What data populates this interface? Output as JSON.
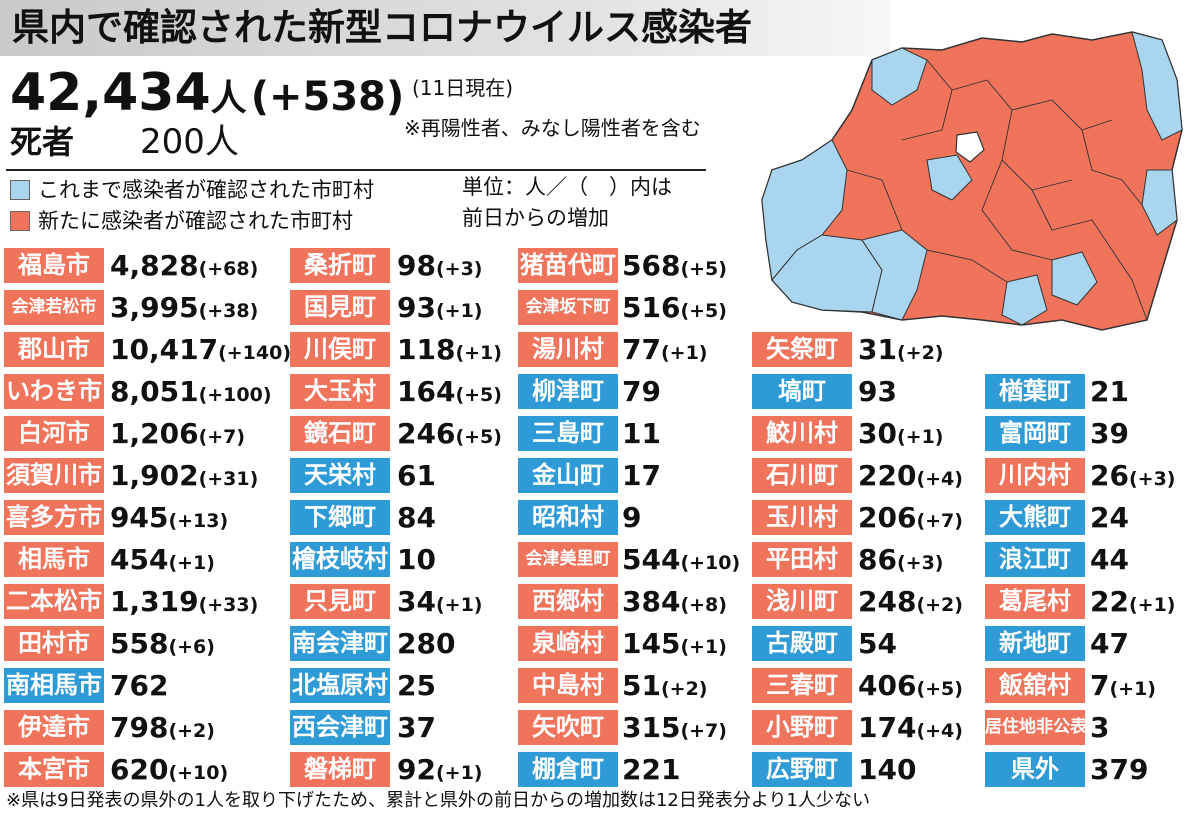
{
  "header": {
    "title": "県内で確認された新型コロナウイルス感染者",
    "total": "42,434",
    "total_unit": "人",
    "total_delta": "(+538)",
    "as_of": "(11日現在)",
    "note": "※再陽性者、みなし陽性者を含む",
    "deaths_label": "死者",
    "deaths_value": "200人"
  },
  "legend": {
    "previous": "これまで感染者が確認された市町村",
    "new": "新たに感染者が確認された市町村",
    "unit_line1": "単位：人／（　）内は",
    "unit_line2": "前日からの増加"
  },
  "colors": {
    "new_case": "#f0745c",
    "previous_case": "#2e9ad6",
    "map_previous": "#a9d6ee",
    "map_none": "#ffffff"
  },
  "columns": [
    [
      {
        "name": "福島市",
        "count": "4,828",
        "delta": "(+68)",
        "status": "new"
      },
      {
        "name": "会津若松市",
        "count": "3,995",
        "delta": "(+38)",
        "status": "new"
      },
      {
        "name": "郡山市",
        "count": "10,417",
        "delta": "(+140)",
        "status": "new"
      },
      {
        "name": "いわき市",
        "count": "8,051",
        "delta": "(+100)",
        "status": "new"
      },
      {
        "name": "白河市",
        "count": "1,206",
        "delta": "(+7)",
        "status": "new"
      },
      {
        "name": "須賀川市",
        "count": "1,902",
        "delta": "(+31)",
        "status": "new"
      },
      {
        "name": "喜多方市",
        "count": "945",
        "delta": "(+13)",
        "status": "new"
      },
      {
        "name": "相馬市",
        "count": "454",
        "delta": "(+1)",
        "status": "new"
      },
      {
        "name": "二本松市",
        "count": "1,319",
        "delta": "(+33)",
        "status": "new"
      },
      {
        "name": "田村市",
        "count": "558",
        "delta": "(+6)",
        "status": "new"
      },
      {
        "name": "南相馬市",
        "count": "762",
        "delta": "",
        "status": "old"
      },
      {
        "name": "伊達市",
        "count": "798",
        "delta": "(+2)",
        "status": "new"
      },
      {
        "name": "本宮市",
        "count": "620",
        "delta": "(+10)",
        "status": "new"
      }
    ],
    [
      {
        "name": "桑折町",
        "count": "98",
        "delta": "(+3)",
        "status": "new"
      },
      {
        "name": "国見町",
        "count": "93",
        "delta": "(+1)",
        "status": "new"
      },
      {
        "name": "川俣町",
        "count": "118",
        "delta": "(+1)",
        "status": "new"
      },
      {
        "name": "大玉村",
        "count": "164",
        "delta": "(+5)",
        "status": "new"
      },
      {
        "name": "鏡石町",
        "count": "246",
        "delta": "(+5)",
        "status": "new"
      },
      {
        "name": "天栄村",
        "count": "61",
        "delta": "",
        "status": "old"
      },
      {
        "name": "下郷町",
        "count": "84",
        "delta": "",
        "status": "old"
      },
      {
        "name": "檜枝岐村",
        "count": "10",
        "delta": "",
        "status": "old"
      },
      {
        "name": "只見町",
        "count": "34",
        "delta": "(+1)",
        "status": "new"
      },
      {
        "name": "南会津町",
        "count": "280",
        "delta": "",
        "status": "old"
      },
      {
        "name": "北塩原村",
        "count": "25",
        "delta": "",
        "status": "old"
      },
      {
        "name": "西会津町",
        "count": "37",
        "delta": "",
        "status": "old"
      },
      {
        "name": "磐梯町",
        "count": "92",
        "delta": "(+1)",
        "status": "new"
      }
    ],
    [
      {
        "name": "猪苗代町",
        "count": "568",
        "delta": "(+5)",
        "status": "new"
      },
      {
        "name": "会津坂下町",
        "count": "516",
        "delta": "(+5)",
        "status": "new"
      },
      {
        "name": "湯川村",
        "count": "77",
        "delta": "(+1)",
        "status": "new"
      },
      {
        "name": "柳津町",
        "count": "79",
        "delta": "",
        "status": "old"
      },
      {
        "name": "三島町",
        "count": "11",
        "delta": "",
        "status": "old"
      },
      {
        "name": "金山町",
        "count": "17",
        "delta": "",
        "status": "old"
      },
      {
        "name": "昭和村",
        "count": "9",
        "delta": "",
        "status": "old"
      },
      {
        "name": "会津美里町",
        "count": "544",
        "delta": "(+10)",
        "status": "new"
      },
      {
        "name": "西郷村",
        "count": "384",
        "delta": "(+8)",
        "status": "new"
      },
      {
        "name": "泉崎村",
        "count": "145",
        "delta": "(+1)",
        "status": "new"
      },
      {
        "name": "中島村",
        "count": "51",
        "delta": "(+2)",
        "status": "new"
      },
      {
        "name": "矢吹町",
        "count": "315",
        "delta": "(+7)",
        "status": "new"
      },
      {
        "name": "棚倉町",
        "count": "221",
        "delta": "",
        "status": "old"
      }
    ],
    [
      {
        "name": "矢祭町",
        "count": "31",
        "delta": "(+2)",
        "status": "new"
      },
      {
        "name": "塙町",
        "count": "93",
        "delta": "",
        "status": "old"
      },
      {
        "name": "鮫川村",
        "count": "30",
        "delta": "(+1)",
        "status": "new"
      },
      {
        "name": "石川町",
        "count": "220",
        "delta": "(+4)",
        "status": "new"
      },
      {
        "name": "玉川村",
        "count": "206",
        "delta": "(+7)",
        "status": "new"
      },
      {
        "name": "平田村",
        "count": "86",
        "delta": "(+3)",
        "status": "new"
      },
      {
        "name": "浅川町",
        "count": "248",
        "delta": "(+2)",
        "status": "new"
      },
      {
        "name": "古殿町",
        "count": "54",
        "delta": "",
        "status": "old"
      },
      {
        "name": "三春町",
        "count": "406",
        "delta": "(+5)",
        "status": "new"
      },
      {
        "name": "小野町",
        "count": "174",
        "delta": "(+4)",
        "status": "new"
      },
      {
        "name": "広野町",
        "count": "140",
        "delta": "",
        "status": "old"
      }
    ],
    [
      {
        "name": "楢葉町",
        "count": "21",
        "delta": "",
        "status": "old"
      },
      {
        "name": "富岡町",
        "count": "39",
        "delta": "",
        "status": "old"
      },
      {
        "name": "川内村",
        "count": "26",
        "delta": "(+3)",
        "status": "new"
      },
      {
        "name": "大熊町",
        "count": "24",
        "delta": "",
        "status": "old"
      },
      {
        "name": "浪江町",
        "count": "44",
        "delta": "",
        "status": "old"
      },
      {
        "name": "葛尾村",
        "count": "22",
        "delta": "(+1)",
        "status": "new"
      },
      {
        "name": "新地町",
        "count": "47",
        "delta": "",
        "status": "old"
      },
      {
        "name": "飯舘村",
        "count": "7",
        "delta": "(+1)",
        "status": "new"
      },
      {
        "name": "居住地非公表",
        "count": "3",
        "delta": "",
        "status": "new"
      },
      {
        "name": "県外",
        "count": "379",
        "delta": "",
        "status": "old"
      }
    ]
  ],
  "footnote": "※県は9日発表の県外の1人を取り下げたため、累計と県外の前日からの増加数は12日発表分より1人少ない"
}
